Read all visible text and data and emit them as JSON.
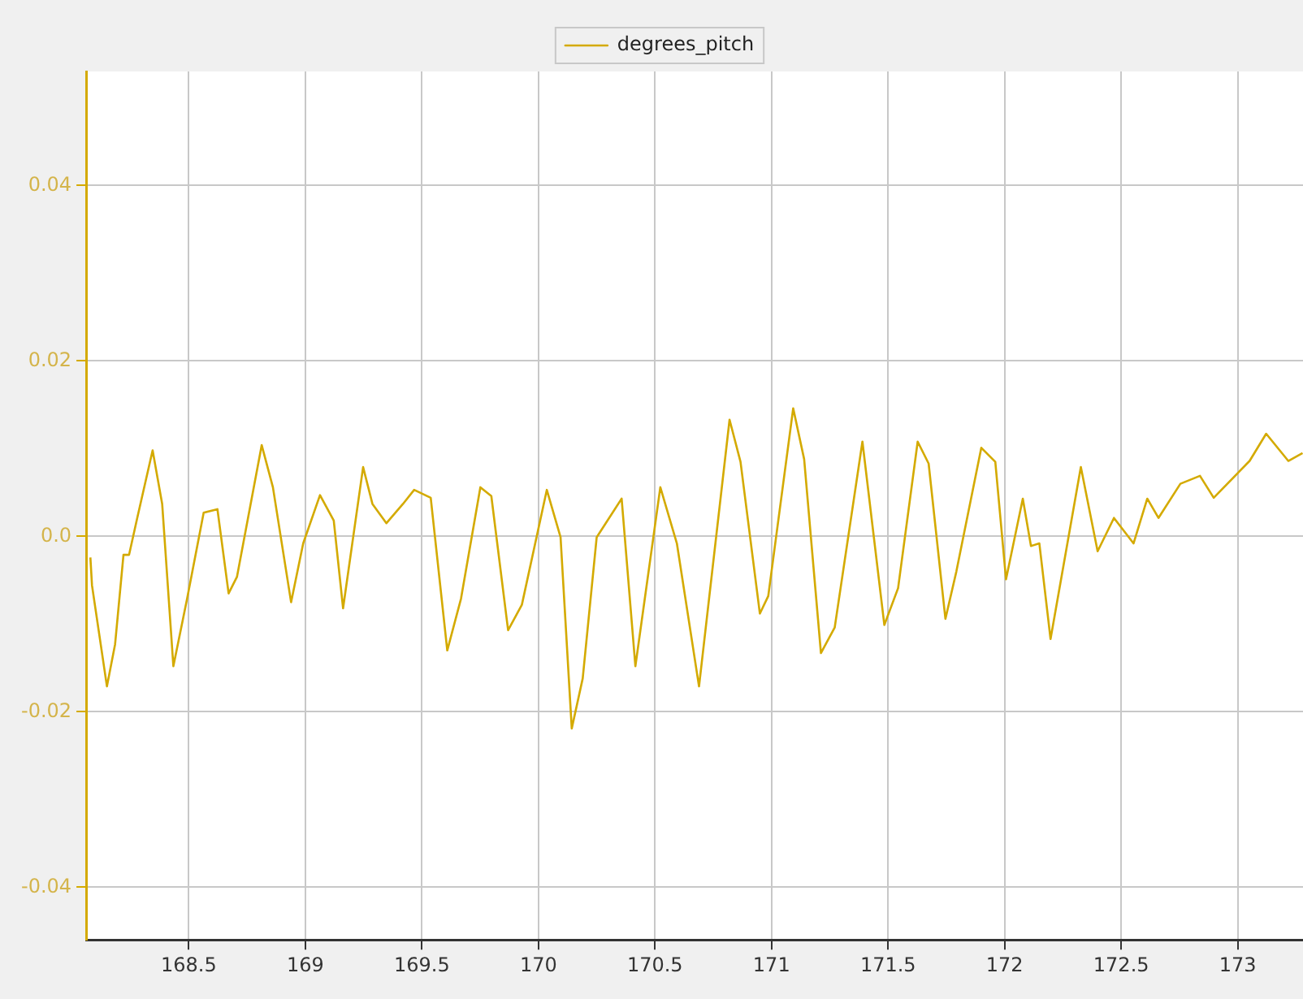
{
  "chart_data": {
    "type": "line",
    "legend": "top",
    "grid": true,
    "marker": "none",
    "line_style": "solid",
    "xlim": [
      168.06,
      173.28
    ],
    "xticks": [
      168.5,
      169,
      169.5,
      170,
      170.5,
      171,
      171.5,
      172,
      172.5,
      173
    ],
    "ylim": [
      -0.046,
      0.053
    ],
    "yticks": [
      -0.04,
      -0.02,
      {
        "value": 0,
        "label": "0.0"
      },
      0.02,
      0.04
    ],
    "series": [
      {
        "name": "degrees_pitch",
        "color": "#d4aa00",
        "x": [
          168.078,
          168.085,
          168.149,
          168.184,
          168.22,
          168.244,
          168.279,
          168.345,
          168.386,
          168.434,
          168.493,
          168.564,
          168.623,
          168.671,
          168.707,
          168.813,
          168.861,
          168.939,
          168.991,
          169.063,
          169.122,
          169.162,
          169.248,
          169.288,
          169.348,
          169.419,
          169.467,
          169.538,
          169.609,
          169.668,
          169.751,
          169.798,
          169.87,
          169.929,
          170.036,
          170.095,
          170.143,
          170.19,
          170.25,
          170.357,
          170.416,
          170.523,
          170.594,
          170.689,
          170.82,
          170.867,
          170.95,
          170.986,
          171.093,
          171.14,
          171.212,
          171.271,
          171.39,
          171.484,
          171.543,
          171.627,
          171.674,
          171.746,
          171.793,
          171.9,
          171.96,
          172.006,
          172.078,
          172.113,
          172.149,
          172.197,
          172.327,
          172.399,
          172.469,
          172.553,
          172.612,
          172.66,
          172.754,
          172.838,
          172.897,
          173.051,
          173.122,
          173.217,
          173.278
        ],
        "values": [
          -0.0024,
          -0.0056,
          -0.0171,
          -0.0123,
          -0.0021,
          -0.0021,
          0.0021,
          0.0098,
          0.0037,
          -0.0148,
          -0.0071,
          0.0027,
          0.0031,
          -0.0065,
          -0.0046,
          0.0104,
          0.0056,
          -0.0075,
          -0.0008,
          0.0047,
          0.0018,
          -0.0082,
          0.0079,
          0.0037,
          0.0015,
          0.0037,
          0.0053,
          0.0044,
          -0.013,
          -0.0071,
          0.0056,
          0.0046,
          -0.0107,
          -0.0078,
          0.0053,
          -0.0001,
          -0.0219,
          -0.0162,
          -0.0001,
          0.0043,
          -0.0148,
          0.0056,
          -0.0008,
          -0.0171,
          0.0133,
          0.0085,
          -0.0088,
          -0.0068,
          0.0146,
          0.0088,
          -0.0133,
          -0.0104,
          0.0108,
          -0.0101,
          -0.0059,
          0.0108,
          0.0083,
          -0.0094,
          -0.004,
          0.0101,
          0.0085,
          -0.0049,
          0.0043,
          -0.0011,
          -0.0008,
          -0.0117,
          0.0079,
          -0.0017,
          0.0021,
          -0.0008,
          0.0043,
          0.0021,
          0.006,
          0.0069,
          0.0044,
          0.0086,
          0.0117,
          0.0086,
          0.0095
        ]
      }
    ]
  }
}
